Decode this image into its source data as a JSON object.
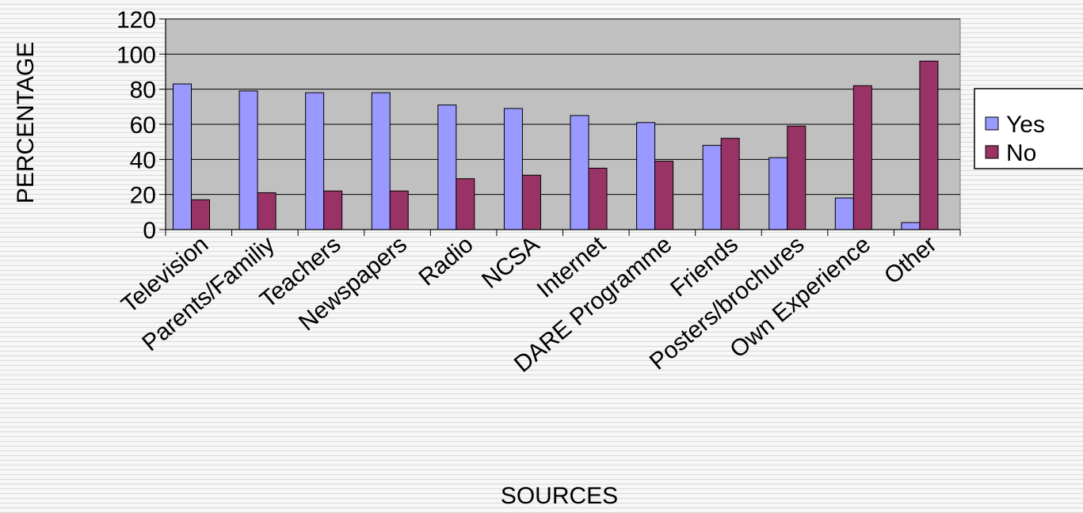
{
  "chart_data": {
    "type": "bar",
    "categories": [
      "Television",
      "Parents/Familiy",
      "Teachers",
      "Newspapers",
      "Radio",
      "NCSA",
      "Internet",
      "DARE Programme",
      "Friends",
      "Posters/brochures",
      "Own Experience",
      "Other"
    ],
    "series": [
      {
        "name": "Yes",
        "values": [
          83,
          79,
          78,
          78,
          71,
          69,
          65,
          61,
          48,
          41,
          18,
          4
        ],
        "color": "#9999ff"
      },
      {
        "name": "No",
        "values": [
          17,
          21,
          22,
          22,
          29,
          31,
          35,
          39,
          52,
          59,
          82,
          96
        ],
        "color": "#993366"
      }
    ],
    "xlabel": "SOURCES",
    "ylabel": "PERCENTAGE",
    "ylim": [
      0,
      120
    ],
    "yticks": [
      0,
      20,
      40,
      60,
      80,
      100,
      120
    ],
    "grid": true,
    "legend_position": "right",
    "plot_background": "#c0c0c0"
  }
}
